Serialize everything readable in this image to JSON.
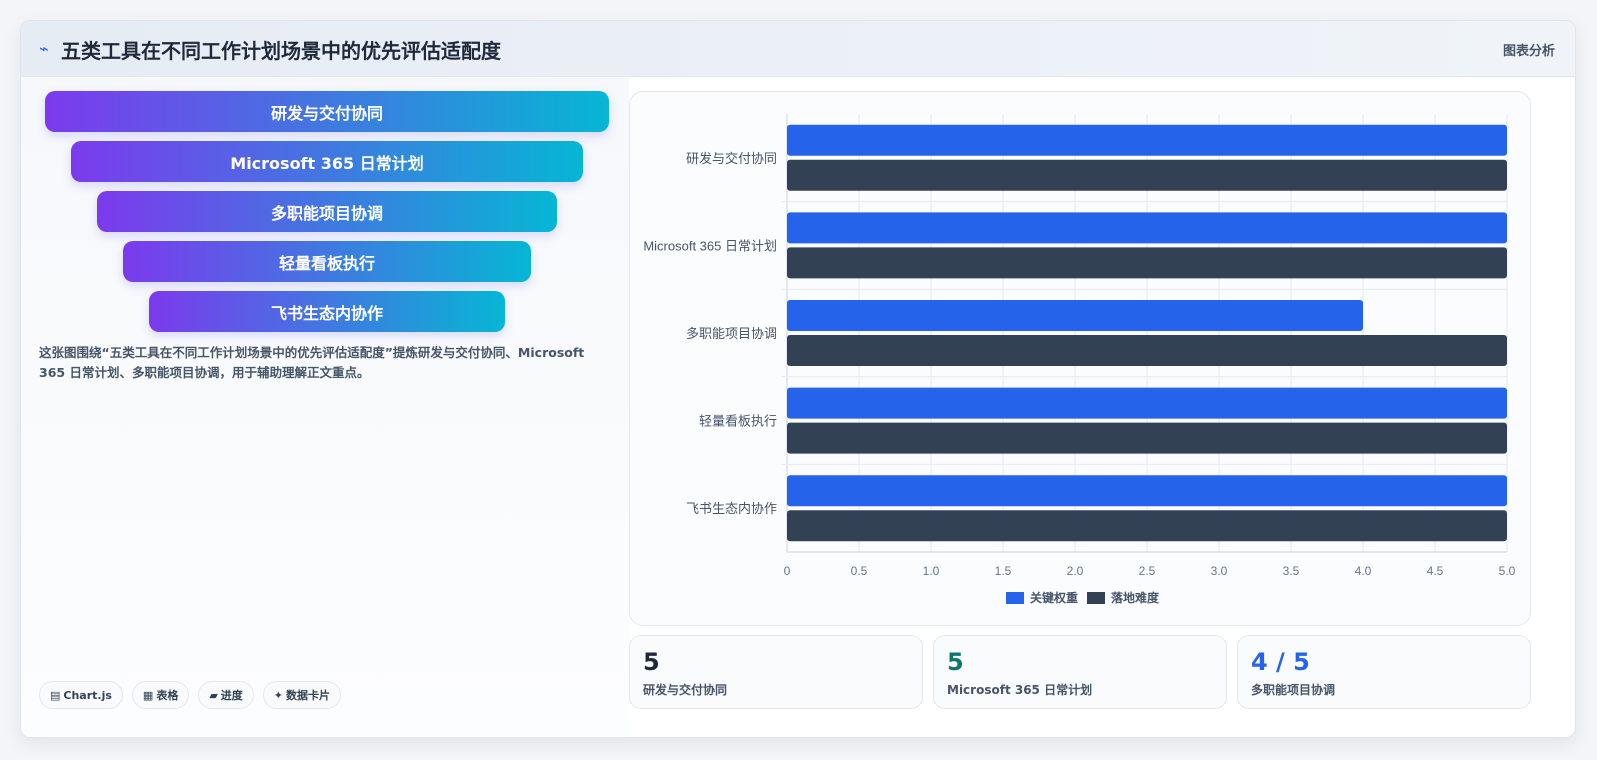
{
  "header": {
    "title": "五类工具在不同工作计划场景中的优先评估适配度",
    "logo_icon": "chart-line-icon",
    "action_label": "图表分析"
  },
  "funnel": [
    "研发与交付协同",
    "Microsoft 365 日常计划",
    "多职能项目协调",
    "轻量看板执行",
    "飞书生态内协作"
  ],
  "description": "这张图围绕“五类工具在不同工作计划场景中的优先评估适配度”提炼研发与交付协同、Microsoft 365 日常计划、多职能项目协调，用于辅助理解正文重点。",
  "chips": [
    {
      "icon": "▤",
      "label": "Chart.js"
    },
    {
      "icon": "▦",
      "label": "表格"
    },
    {
      "icon": "▰",
      "label": "进度"
    },
    {
      "icon": "✦",
      "label": "数据卡片"
    }
  ],
  "stats": [
    {
      "value": "5",
      "label": "研发与交付协同",
      "color": "#1e293b"
    },
    {
      "value": "5",
      "label": "Microsoft 365 日常计划",
      "color": "#0f766e"
    },
    {
      "value": "4 / 5",
      "label": "多职能项目协调",
      "color": "#2563eb"
    }
  ],
  "chart_data": {
    "type": "bar",
    "orientation": "horizontal",
    "categories": [
      "研发与交付协同",
      "Microsoft 365 日常计划",
      "多职能项目协调",
      "轻量看板执行",
      "飞书生态内协作"
    ],
    "series": [
      {
        "name": "关键权重",
        "values": [
          5,
          5,
          4,
          5,
          5
        ],
        "color": "#2563eb"
      },
      {
        "name": "落地难度",
        "values": [
          5,
          5,
          5,
          5,
          5
        ],
        "color": "#334155"
      }
    ],
    "xlim": [
      0,
      5
    ],
    "xticks": [
      "0",
      "0.5",
      "1.0",
      "1.5",
      "2.0",
      "2.5",
      "3.0",
      "3.5",
      "4.0",
      "4.5",
      "5.0"
    ],
    "grid": true,
    "legend_position": "bottom"
  }
}
